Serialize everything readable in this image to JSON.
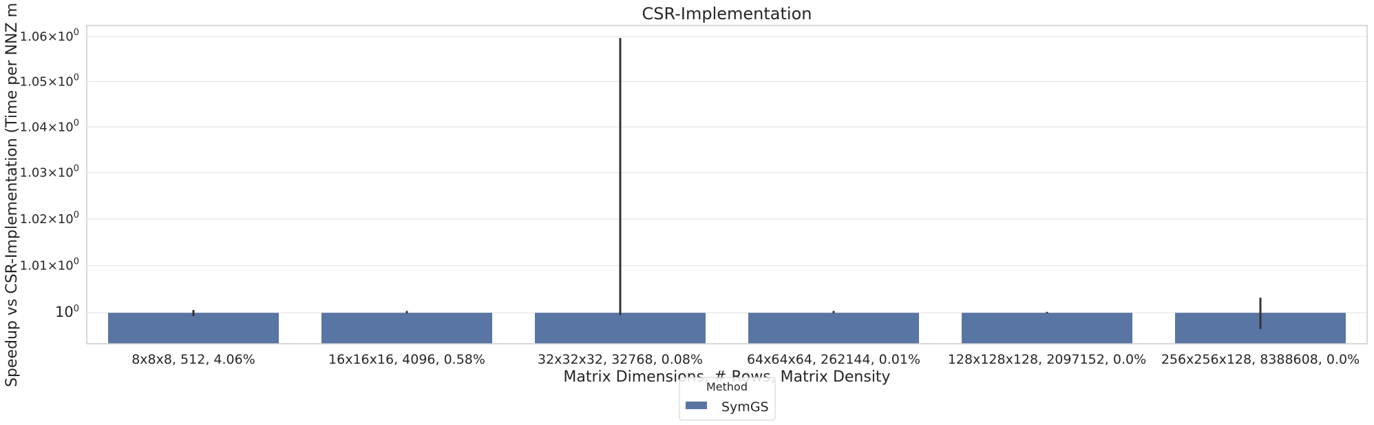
{
  "chart_data": {
    "type": "bar",
    "title": "CSR-Implementation",
    "xlabel": "Matrix Dimensions, # Rows, Matrix Density",
    "ylabel": "Speedup vs CSR-Implementation (Time per NNZ m",
    "yscale": "log",
    "ylim": [
      0.9935,
      1.0625
    ],
    "yticks": [
      {
        "value": 1.0,
        "base": "10",
        "sup": "0",
        "mantissa": ""
      },
      {
        "value": 1.01,
        "base": "10",
        "sup": "0",
        "mantissa": "1.01"
      },
      {
        "value": 1.02,
        "base": "10",
        "sup": "0",
        "mantissa": "1.02"
      },
      {
        "value": 1.03,
        "base": "10",
        "sup": "0",
        "mantissa": "1.03"
      },
      {
        "value": 1.04,
        "base": "10",
        "sup": "0",
        "mantissa": "1.04"
      },
      {
        "value": 1.05,
        "base": "10",
        "sup": "0",
        "mantissa": "1.05"
      },
      {
        "value": 1.06,
        "base": "10",
        "sup": "0",
        "mantissa": "1.06"
      }
    ],
    "categories": [
      "8x8x8, 512, 4.06%",
      "16x16x16, 4096, 0.58%",
      "32x32x32, 32768, 0.08%",
      "64x64x64, 262144, 0.01%",
      "128x128x128, 2097152, 0.0%",
      "256x256x128, 8388608, 0.0%"
    ],
    "series": [
      {
        "name": "SymGS",
        "color": "#5975a4",
        "values": [
          1.0,
          1.0,
          1.0,
          1.0,
          1.0,
          1.0
        ],
        "error_low": [
          0.9993,
          0.9999,
          0.9995,
          0.9999,
          0.9999,
          0.9966
        ],
        "error_high": [
          1.0006,
          1.0004,
          1.0597,
          1.0004,
          1.0002,
          1.0032
        ]
      }
    ],
    "grid": true,
    "legend": {
      "title": "Method",
      "placement": "bottom-center"
    }
  }
}
